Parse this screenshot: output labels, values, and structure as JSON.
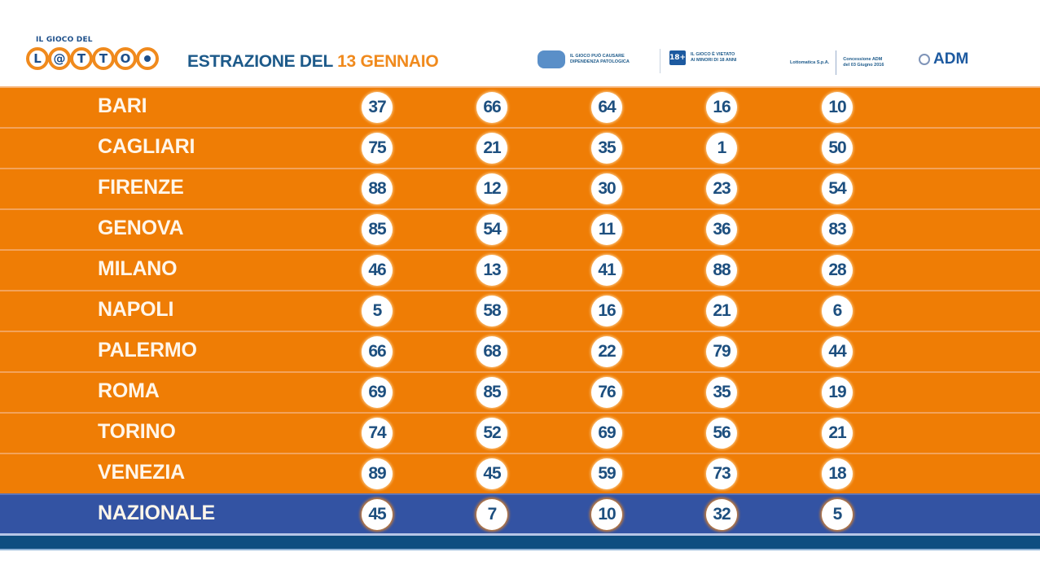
{
  "header": {
    "brand_small": "IL GIOCO DEL",
    "brand_letters": [
      "L",
      "@",
      "T",
      "T",
      "O"
    ],
    "title_prefix": "ESTRAZIONE DEL",
    "title_date": "13 GENNAIO",
    "warning_1": [
      "IL GIOCO PUÒ CAUSARE",
      "DIPENDENZA PATOLOGICA"
    ],
    "age_badge": "18+",
    "warning_2": [
      "IL GIOCO È VIETATO",
      "AI MINORI DI 18 ANNI"
    ],
    "operator": "Lottomatica S.p.A.",
    "concession": [
      "Concessione ADM",
      "del 03 Giugno 2016"
    ],
    "adm_label": "ADM"
  },
  "colors": {
    "orange": "#ef7d05",
    "blue": "#3353a3",
    "dark_blue": "#0e4e80",
    "number_text": "#1d4f7f"
  },
  "draws": [
    {
      "city": "BARI",
      "numbers": [
        "37",
        "66",
        "64",
        "16",
        "10"
      ]
    },
    {
      "city": "CAGLIARI",
      "numbers": [
        "75",
        "21",
        "35",
        "1",
        "50"
      ]
    },
    {
      "city": "FIRENZE",
      "numbers": [
        "88",
        "12",
        "30",
        "23",
        "54"
      ]
    },
    {
      "city": "GENOVA",
      "numbers": [
        "85",
        "54",
        "11",
        "36",
        "83"
      ]
    },
    {
      "city": "MILANO",
      "numbers": [
        "46",
        "13",
        "41",
        "88",
        "28"
      ]
    },
    {
      "city": "NAPOLI",
      "numbers": [
        "5",
        "58",
        "16",
        "21",
        "6"
      ]
    },
    {
      "city": "PALERMO",
      "numbers": [
        "66",
        "68",
        "22",
        "79",
        "44"
      ]
    },
    {
      "city": "ROMA",
      "numbers": [
        "69",
        "85",
        "76",
        "35",
        "19"
      ]
    },
    {
      "city": "TORINO",
      "numbers": [
        "74",
        "52",
        "69",
        "56",
        "21"
      ]
    },
    {
      "city": "VENEZIA",
      "numbers": [
        "89",
        "45",
        "59",
        "73",
        "18"
      ]
    },
    {
      "city": "NAZIONALE",
      "numbers": [
        "45",
        "7",
        "10",
        "32",
        "5"
      ]
    }
  ]
}
